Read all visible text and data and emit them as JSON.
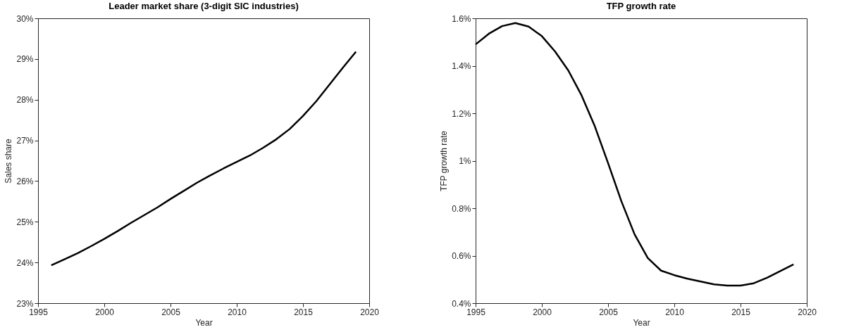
{
  "chart_data": [
    {
      "type": "line",
      "title": "Leader market share (3-digit SIC industries)",
      "xlabel": "Year",
      "ylabel": "Sales share",
      "x": [
        1996,
        1997,
        1998,
        1999,
        2000,
        2001,
        2002,
        2003,
        2004,
        2005,
        2006,
        2007,
        2008,
        2009,
        2010,
        2011,
        2012,
        2013,
        2014,
        2015,
        2016,
        2017,
        2018,
        2019
      ],
      "series": [
        {
          "color": "#000000",
          "values": [
            23.93,
            24.08,
            24.23,
            24.4,
            24.58,
            24.77,
            24.97,
            25.16,
            25.35,
            25.56,
            25.76,
            25.96,
            26.14,
            26.31,
            26.47,
            26.63,
            26.82,
            27.03,
            27.28,
            27.6,
            27.96,
            28.37,
            28.78,
            29.18
          ]
        }
      ],
      "xlim": [
        1995,
        2020
      ],
      "xticks": [
        1995,
        2000,
        2005,
        2010,
        2015,
        2020
      ],
      "ylim": [
        23,
        30
      ],
      "yticks": [
        {
          "value": 23,
          "label": "23%"
        },
        {
          "value": 24,
          "label": "24%"
        },
        {
          "value": 25,
          "label": "25%"
        },
        {
          "value": 26,
          "label": "26%"
        },
        {
          "value": 27,
          "label": "27%"
        },
        {
          "value": 28,
          "label": "28%"
        },
        {
          "value": 29,
          "label": "29%"
        },
        {
          "value": 30,
          "label": "30%"
        }
      ],
      "grid": false,
      "marker": "none",
      "line_style": "solid"
    },
    {
      "type": "line",
      "title": "TFP growth rate",
      "xlabel": "Year",
      "ylabel": "TFP growth rate",
      "x": [
        1995,
        1996,
        1997,
        1998,
        1999,
        2000,
        2001,
        2002,
        2003,
        2004,
        2005,
        2006,
        2007,
        2008,
        2009,
        2010,
        2011,
        2012,
        2013,
        2014,
        2015,
        2016,
        2017,
        2018,
        2019
      ],
      "series": [
        {
          "color": "#000000",
          "values": [
            1.49,
            1.535,
            1.567,
            1.58,
            1.565,
            1.525,
            1.46,
            1.38,
            1.275,
            1.145,
            0.99,
            0.83,
            0.69,
            0.59,
            0.537,
            0.518,
            0.503,
            0.491,
            0.479,
            0.474,
            0.474,
            0.484,
            0.507,
            0.535,
            0.563
          ]
        }
      ],
      "xlim": [
        1995,
        2020
      ],
      "xticks": [
        1995,
        2000,
        2005,
        2010,
        2015,
        2020
      ],
      "ylim": [
        0.4,
        1.6
      ],
      "yticks": [
        {
          "value": 0.4,
          "label": "0.4%"
        },
        {
          "value": 0.6,
          "label": "0.6%"
        },
        {
          "value": 0.8,
          "label": "0.8%"
        },
        {
          "value": 1,
          "label": "1%"
        },
        {
          "value": 1.2,
          "label": "1.2%"
        },
        {
          "value": 1.4,
          "label": "1.4%"
        },
        {
          "value": 1.6,
          "label": "1.6%"
        }
      ],
      "grid": false,
      "marker": "none",
      "line_style": "solid"
    }
  ]
}
